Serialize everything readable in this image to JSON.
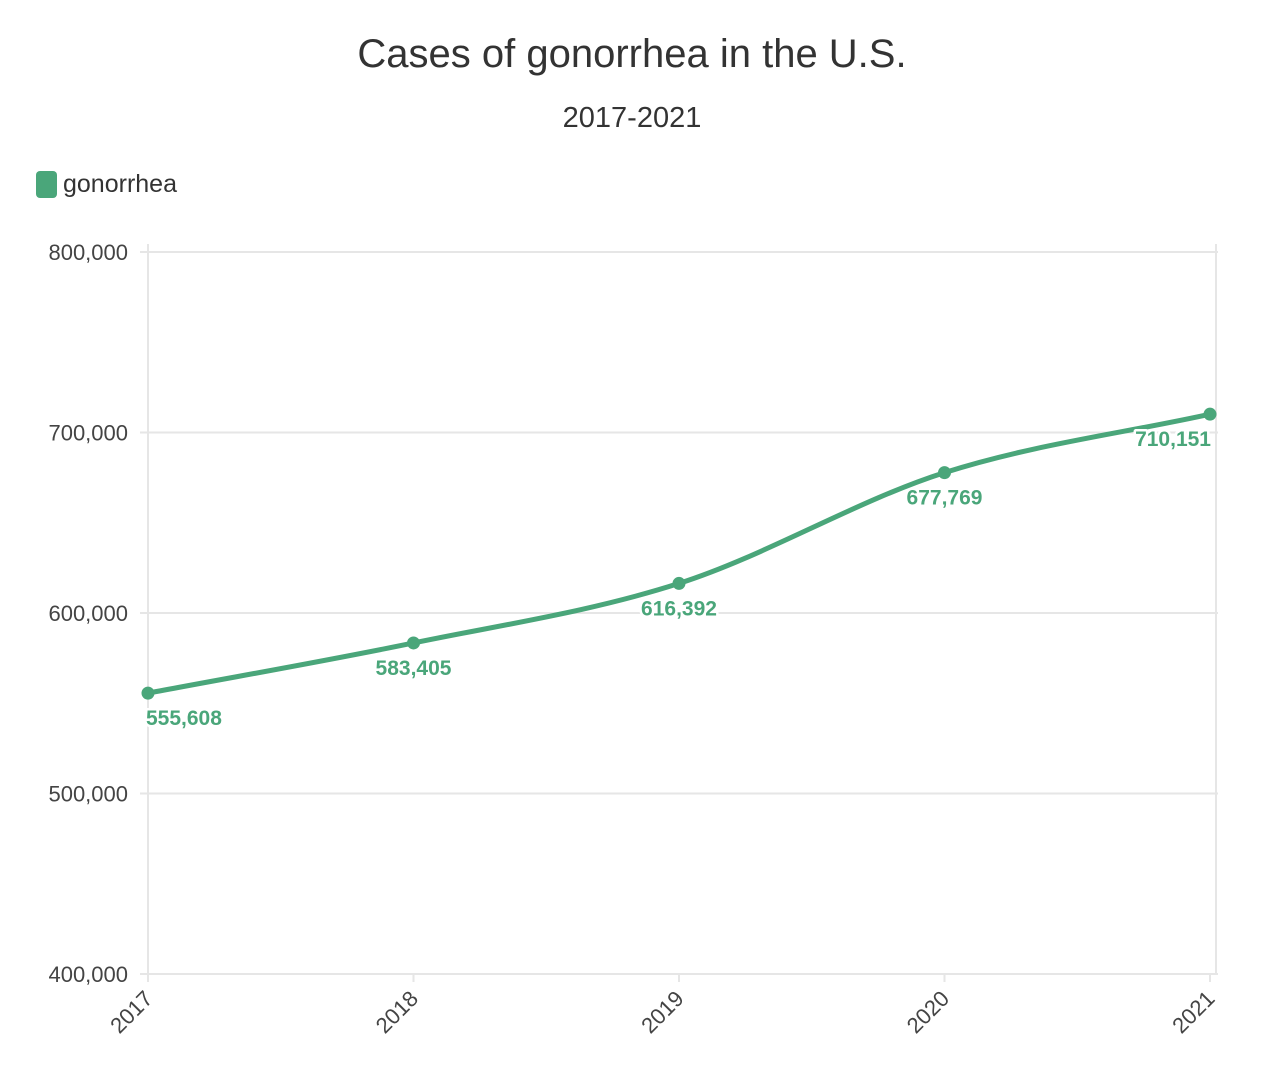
{
  "colors": {
    "series": "#4aa67a"
  },
  "chart_data": {
    "type": "line",
    "title": "Cases of gonorrhea in the U.S.",
    "subtitle": "2017-2021",
    "xlabel": "",
    "ylabel": "",
    "categories": [
      "2017",
      "2018",
      "2019",
      "2020",
      "2021"
    ],
    "series": [
      {
        "name": "gonorrhea",
        "values": [
          555608,
          583405,
          616392,
          677769,
          710151
        ],
        "labels": [
          "555,608",
          "583,405",
          "616,392",
          "677,769",
          "710,151"
        ]
      }
    ],
    "ylim": [
      400000,
      800000
    ],
    "yticks": [
      400000,
      500000,
      600000,
      700000,
      800000
    ],
    "ytick_labels": [
      "400,000",
      "500,000",
      "600,000",
      "700,000",
      "800,000"
    ],
    "grid": true,
    "legend": "top-left",
    "smooth": true,
    "markers": true
  }
}
